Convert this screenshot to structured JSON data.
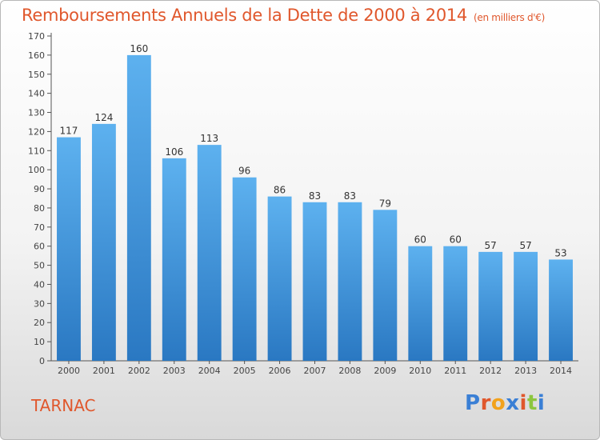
{
  "title": "Remboursements Annuels de la Dette de 2000 à 2014",
  "title_unit": "(en milliers d'€)",
  "commune": "TARNAC",
  "logo": {
    "text": "Proxiti",
    "colors": [
      "#3a7fd5",
      "#e0572c",
      "#f2a21c",
      "#3a7fd5",
      "#e0572c",
      "#8cc63f",
      "#3a7fd5"
    ]
  },
  "colors": {
    "bar_light": "#5db1ef",
    "bar_dark": "#2a78c2",
    "title": "#e0572c"
  },
  "chart_data": {
    "type": "bar",
    "categories": [
      "2000",
      "2001",
      "2002",
      "2003",
      "2004",
      "2005",
      "2006",
      "2007",
      "2008",
      "2009",
      "2010",
      "2011",
      "2012",
      "2013",
      "2014"
    ],
    "values": [
      117,
      124,
      160,
      106,
      113,
      96,
      86,
      83,
      83,
      79,
      60,
      60,
      57,
      57,
      53
    ],
    "value_labels": [
      "117",
      "124",
      "160",
      "106",
      "113",
      "96",
      "86",
      "83",
      "83",
      "79",
      "60",
      "60",
      "57",
      "57",
      "53"
    ],
    "ylim": [
      0,
      170
    ],
    "yticks": [
      0,
      10,
      20,
      30,
      40,
      50,
      60,
      70,
      80,
      90,
      100,
      110,
      120,
      130,
      140,
      150,
      160,
      170
    ],
    "grid": false
  }
}
